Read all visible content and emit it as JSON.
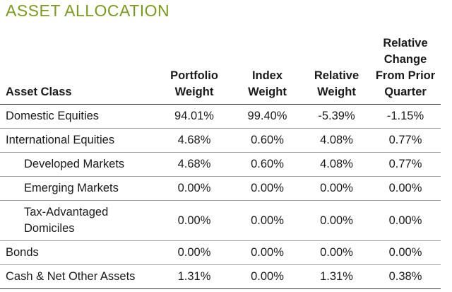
{
  "title": "ASSET ALLOCATION",
  "colors": {
    "title": "#7a9a1e",
    "text": "#1a1a1a",
    "rule": "#a0a0a0"
  },
  "headers": {
    "asset_class": "Asset Class",
    "portfolio_weight_line1": "Portfolio",
    "portfolio_weight_line2": "Weight",
    "index_weight_line1": "Index",
    "index_weight_line2": "Weight",
    "relative_weight_line1": "Relative",
    "relative_weight_line2": "Weight",
    "relative_change_line1": "Relative",
    "relative_change_line2": "Change",
    "relative_change_line3": "From Prior",
    "relative_change_line4": "Quarter"
  },
  "rows": [
    {
      "asset_class": "Domestic Equities",
      "portfolio_weight": "94.01%",
      "index_weight": "99.40%",
      "relative_weight": "-5.39%",
      "relative_change": "-1.15%"
    },
    {
      "asset_class": "International Equities",
      "portfolio_weight": "4.68%",
      "index_weight": "0.60%",
      "relative_weight": "4.08%",
      "relative_change": "0.77%"
    },
    {
      "asset_class": "Developed Markets",
      "portfolio_weight": "4.68%",
      "index_weight": "0.60%",
      "relative_weight": "4.08%",
      "relative_change": "0.77%"
    },
    {
      "asset_class": "Emerging Markets",
      "portfolio_weight": "0.00%",
      "index_weight": "0.00%",
      "relative_weight": "0.00%",
      "relative_change": "0.00%"
    },
    {
      "asset_class_line1": "Tax-Advantaged",
      "asset_class_line2": "Domiciles",
      "portfolio_weight": "0.00%",
      "index_weight": "0.00%",
      "relative_weight": "0.00%",
      "relative_change": "0.00%"
    },
    {
      "asset_class": "Bonds",
      "portfolio_weight": "0.00%",
      "index_weight": "0.00%",
      "relative_weight": "0.00%",
      "relative_change": "0.00%"
    },
    {
      "asset_class": "Cash & Net Other Assets",
      "portfolio_weight": "1.31%",
      "index_weight": "0.00%",
      "relative_weight": "1.31%",
      "relative_change": "0.38%"
    }
  ]
}
